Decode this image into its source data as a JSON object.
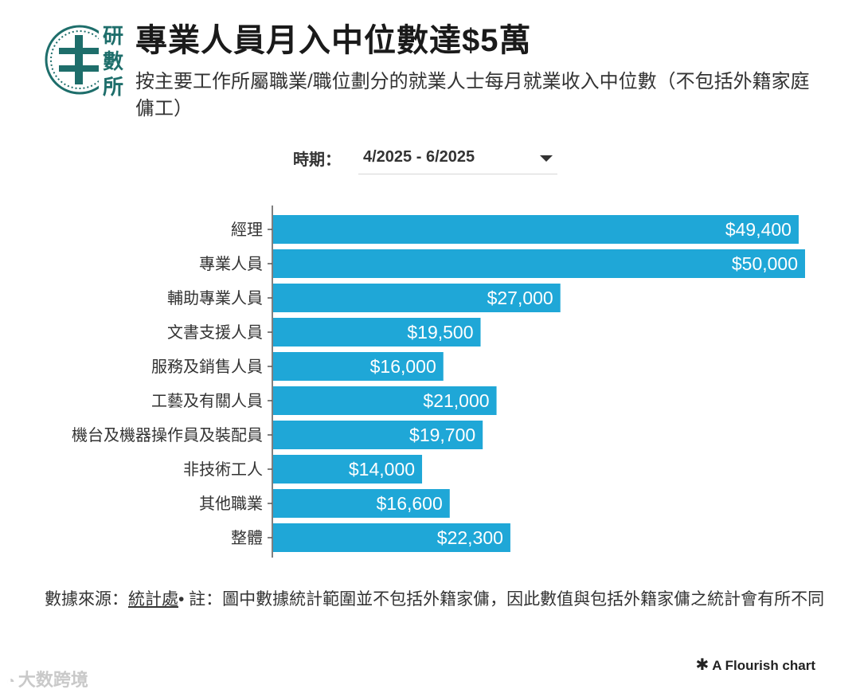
{
  "header": {
    "logo_text": [
      "研",
      "數",
      "所"
    ],
    "title": "專業人員月入中位數達$5萬",
    "subtitle": "按主要工作所屬職業/職位劃分的就業人士每月就業收入中位數（不包括外籍家庭傭工）"
  },
  "filter": {
    "label": "時期：",
    "selected": "4/2025 - 6/2025"
  },
  "chart_data": {
    "type": "bar",
    "orientation": "horizontal",
    "categories": [
      "經理",
      "專業人員",
      "輔助專業人員",
      "文書支援人員",
      "服務及銷售人員",
      "工藝及有關人員",
      "機台及機器操作員及裝配員",
      "非技術工人",
      "其他職業",
      "整體"
    ],
    "values": [
      49400,
      50000,
      27000,
      19500,
      16000,
      21000,
      19700,
      14000,
      16600,
      22300
    ],
    "value_labels": [
      "$49,400",
      "$50,000",
      "$27,000",
      "$19,500",
      "$16,000",
      "$21,000",
      "$19,700",
      "$14,000",
      "$16,600",
      "$22,300"
    ],
    "xlim": [
      0,
      50000
    ],
    "bar_color": "#1fa7d7",
    "label_color": "#ffffff",
    "grid": false
  },
  "footer": {
    "source_prefix": "數據來源：",
    "source_link": "統計處",
    "note": "• 註：圖中數據統計範圍並不包括外籍家傭，因此數值與包括外籍家傭之統計會有所不同"
  },
  "credit": {
    "icon": "asterisk-icon",
    "text": "A Flourish chart"
  },
  "watermark": {
    "text": "大数跨境"
  },
  "colors": {
    "logo": "#1e6e6b",
    "bar": "#1fa7d7",
    "axis": "#555555"
  }
}
